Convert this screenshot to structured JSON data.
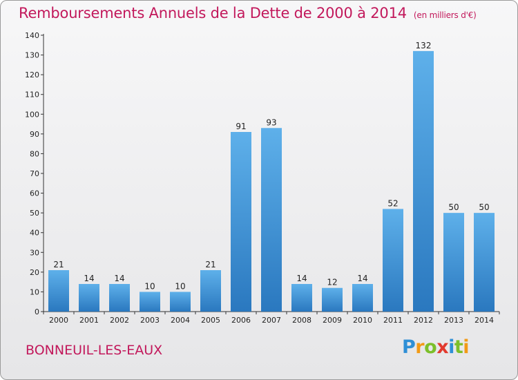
{
  "title": "Remboursements Annuels de la Dette de 2000 à 2014",
  "unit": "(en milliers d'€)",
  "city": "BONNEUIL-LES-EAUX",
  "brand": {
    "text": "Proxiti",
    "letters": [
      "P",
      "r",
      "o",
      "x",
      "i",
      "t",
      "i"
    ],
    "letter_colors": [
      "#2e8fd6",
      "#f29a16",
      "#7cbf2a",
      "#e23a2e",
      "#2e8fd6",
      "#7cbf2a",
      "#f29a16"
    ]
  },
  "chart_data": {
    "type": "bar",
    "title": "Remboursements Annuels de la Dette de 2000 à 2014",
    "categories": [
      "2000",
      "2001",
      "2002",
      "2003",
      "2004",
      "2005",
      "2006",
      "2007",
      "2008",
      "2009",
      "2010",
      "2011",
      "2012",
      "2013",
      "2014"
    ],
    "values": [
      21,
      14,
      14,
      10,
      10,
      21,
      91,
      93,
      14,
      12,
      14,
      52,
      132,
      50,
      50
    ],
    "ylim": [
      0,
      140
    ],
    "yticks": [
      0,
      10,
      20,
      30,
      40,
      50,
      60,
      70,
      80,
      90,
      100,
      110,
      120,
      130,
      140
    ],
    "grid": false,
    "bar_color_light": "#5eb0ea",
    "bar_color_dark": "#2a78bf"
  }
}
